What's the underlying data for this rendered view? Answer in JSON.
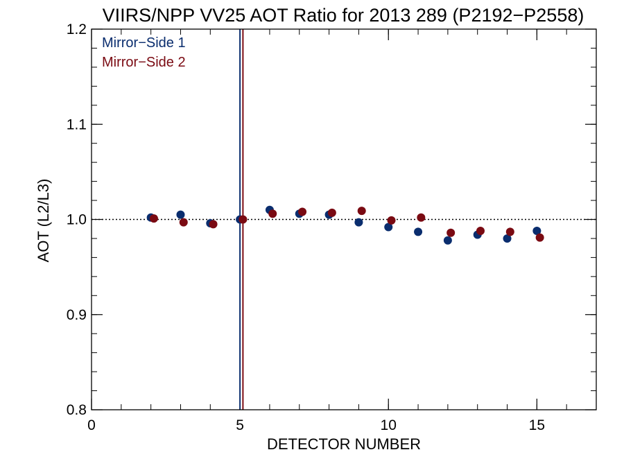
{
  "chart_data": {
    "type": "scatter",
    "title": "VIIRS/NPP VV25 AOT Ratio for 2013 289 (P2192−P2558)",
    "xlabel": "DETECTOR NUMBER",
    "ylabel": "AOT (L2/L3)",
    "xlim": [
      0,
      17
    ],
    "ylim": [
      0.8,
      1.2
    ],
    "x_ticks": [
      0,
      5,
      10,
      15
    ],
    "x_tick_labels": [
      "0",
      "5",
      "10",
      "15"
    ],
    "y_ticks": [
      0.8,
      0.9,
      1.0,
      1.1,
      1.2
    ],
    "y_tick_labels": [
      "0.8",
      "0.9",
      "1.0",
      "1.1",
      "1.2"
    ],
    "x_minor_step": 1,
    "y_minor_step": 0.02,
    "grid": false,
    "legend_position": "top-left",
    "reference_line": {
      "y": 1.0,
      "style": "dotted"
    },
    "vertical_lines": [
      {
        "x": 5.0,
        "color": "#0a2d6e"
      },
      {
        "x": 5.1,
        "color": "#7a0a12"
      }
    ],
    "series": [
      {
        "name": "Mirror−Side 1",
        "color": "#0a2d6e",
        "x": [
          2,
          3,
          4,
          5,
          6,
          7,
          8,
          9,
          10,
          11,
          12,
          13,
          14,
          15
        ],
        "y": [
          1.002,
          1.005,
          0.996,
          1.0,
          1.01,
          1.006,
          1.005,
          0.997,
          0.992,
          0.987,
          0.978,
          0.984,
          0.98,
          0.988
        ]
      },
      {
        "name": "Mirror−Side 2",
        "color": "#7a0a12",
        "x": [
          2.1,
          3.1,
          4.1,
          5.1,
          6.1,
          7.1,
          8.1,
          9.1,
          10.1,
          11.1,
          12.1,
          13.1,
          14.1,
          15.1
        ],
        "y": [
          1.001,
          0.997,
          0.995,
          1.0,
          1.006,
          1.008,
          1.007,
          1.009,
          0.999,
          1.002,
          0.986,
          0.988,
          0.987,
          0.981
        ]
      }
    ]
  }
}
